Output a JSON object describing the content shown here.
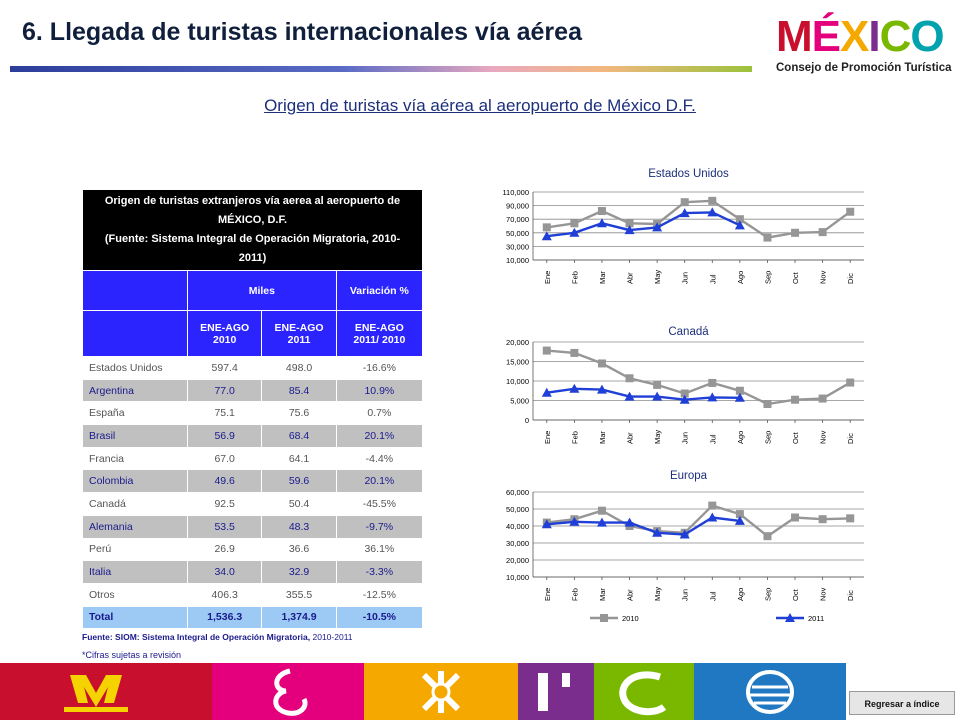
{
  "header": {
    "title": "6. Llegada de turistas internacionales vía aérea"
  },
  "logo": {
    "word_letters": [
      {
        "ch": "M",
        "color": "#c8102e"
      },
      {
        "ch": "É",
        "color": "#e4007c"
      },
      {
        "ch": "X",
        "color": "#f5a800"
      },
      {
        "ch": "I",
        "color": "#7b2d8e"
      },
      {
        "ch": "C",
        "color": "#7ab800"
      },
      {
        "ch": "O",
        "color": "#00a3ad"
      }
    ],
    "tagline": "Consejo de Promoción Turística"
  },
  "subtitle": "Origen de turistas vía aérea al aeropuerto de México D.F.",
  "table": {
    "title_line1": "Origen de turistas extranjeros vía aerea al aeropuerto de",
    "title_line2": "MÉXICO, D.F.",
    "title_line3": "(Fuente: Sistema Integral de Operación Migratoria, 2010-",
    "title_line4": "2011)",
    "miles": "Miles",
    "variacion": "Variación %",
    "col1_a": "ENE-AGO",
    "col1_b": "2010",
    "col2_a": "ENE-AGO",
    "col2_b": "2011",
    "col3_a": "ENE-AGO",
    "col3_b": "2011/ 2010",
    "rows": [
      {
        "country": "Estados Unidos",
        "v2010": "597.4",
        "v2011": "498.0",
        "var": "-16.6%"
      },
      {
        "country": "Argentina",
        "v2010": "77.0",
        "v2011": "85.4",
        "var": "10.9%"
      },
      {
        "country": "España",
        "v2010": "75.1",
        "v2011": "75.6",
        "var": "0.7%"
      },
      {
        "country": "Brasil",
        "v2010": "56.9",
        "v2011": "68.4",
        "var": "20.1%"
      },
      {
        "country": "Francia",
        "v2010": "67.0",
        "v2011": "64.1",
        "var": "-4.4%"
      },
      {
        "country": "Colombia",
        "v2010": "49.6",
        "v2011": "59.6",
        "var": "20.1%"
      },
      {
        "country": "Canadá",
        "v2010": "92.5",
        "v2011": "50.4",
        "var": "-45.5%"
      },
      {
        "country": "Alemania",
        "v2010": "53.5",
        "v2011": "48.3",
        "var": "-9.7%"
      },
      {
        "country": "Perú",
        "v2010": "26.9",
        "v2011": "36.6",
        "var": "36.1%"
      },
      {
        "country": "Italia",
        "v2010": "34.0",
        "v2011": "32.9",
        "var": "-3.3%"
      },
      {
        "country": "Otros",
        "v2010": "406.3",
        "v2011": "355.5",
        "var": "-12.5%"
      }
    ],
    "total": {
      "country": "Total",
      "v2010": "1,536.3",
      "v2011": "1,374.9",
      "var": "-10.5%"
    }
  },
  "source": {
    "bold": "Fuente: SIOM: Sistema Integral de Operación Migratoria,",
    "rest": " 2010-2011"
  },
  "note": "*Cifras sujetas a revisión",
  "back_button": "Regresar a índice",
  "chart_data": [
    {
      "type": "line",
      "title": "Estados Unidos",
      "categories": [
        "Ene",
        "Feb",
        "Mar",
        "Abr",
        "May",
        "Jun",
        "Jul",
        "Ago",
        "Sep",
        "Oct",
        "Nov",
        "Dic"
      ],
      "ylim": [
        10000,
        110000
      ],
      "yticks": [
        10000,
        30000,
        50000,
        70000,
        90000,
        110000
      ],
      "ytick_labels": [
        "10,000",
        "30,000",
        "50,000",
        "70,000",
        "90,000",
        "110,000"
      ],
      "grid": true,
      "series": [
        {
          "name": "2010",
          "color": "#969696",
          "marker": "square",
          "values": [
            58000,
            64000,
            82000,
            64000,
            63000,
            95000,
            97000,
            70000,
            43000,
            50000,
            51000,
            81000
          ]
        },
        {
          "name": "2011",
          "color": "#1f3fd6",
          "marker": "triangle",
          "values": [
            45000,
            50000,
            64000,
            54000,
            58000,
            79000,
            80000,
            61000,
            null,
            null,
            null,
            null
          ]
        }
      ]
    },
    {
      "type": "line",
      "title": "Canadá",
      "categories": [
        "Ene",
        "Feb",
        "Mar",
        "Abr",
        "May",
        "Jun",
        "Jul",
        "Ago",
        "Sep",
        "Oct",
        "Nov",
        "Dic"
      ],
      "ylim": [
        0,
        20000
      ],
      "yticks": [
        0,
        5000,
        10000,
        15000,
        20000
      ],
      "ytick_labels": [
        "0",
        "5,000",
        "10,000",
        "15,000",
        "20,000"
      ],
      "grid": true,
      "series": [
        {
          "name": "2010",
          "color": "#969696",
          "marker": "square",
          "values": [
            17800,
            17200,
            14500,
            10700,
            9000,
            6800,
            9500,
            7500,
            4100,
            5200,
            5500,
            9600
          ]
        },
        {
          "name": "2011",
          "color": "#1f3fd6",
          "marker": "triangle",
          "values": [
            7000,
            8000,
            7800,
            6000,
            6000,
            5200,
            5800,
            5700,
            null,
            null,
            null,
            null
          ]
        }
      ]
    },
    {
      "type": "line",
      "title": "Europa",
      "categories": [
        "Ene",
        "Feb",
        "Mar",
        "Abr",
        "May",
        "Jun",
        "Jul",
        "Ago",
        "Sep",
        "Oct",
        "Nov",
        "Dic"
      ],
      "ylim": [
        10000,
        60000
      ],
      "yticks": [
        10000,
        20000,
        30000,
        40000,
        50000,
        60000
      ],
      "ytick_labels": [
        "10,000",
        "20,000",
        "30,000",
        "40,000",
        "50,000",
        "60,000"
      ],
      "grid": true,
      "legend_position": "bottom",
      "series": [
        {
          "name": "2010",
          "color": "#969696",
          "marker": "square",
          "values": [
            42000,
            44000,
            49000,
            40000,
            37000,
            36000,
            52000,
            47000,
            34000,
            45000,
            44000,
            44500
          ]
        },
        {
          "name": "2011",
          "color": "#1f3fd6",
          "marker": "triangle",
          "values": [
            41000,
            42500,
            42000,
            42000,
            36000,
            35000,
            45000,
            43000,
            null,
            null,
            null,
            null
          ]
        }
      ]
    }
  ]
}
